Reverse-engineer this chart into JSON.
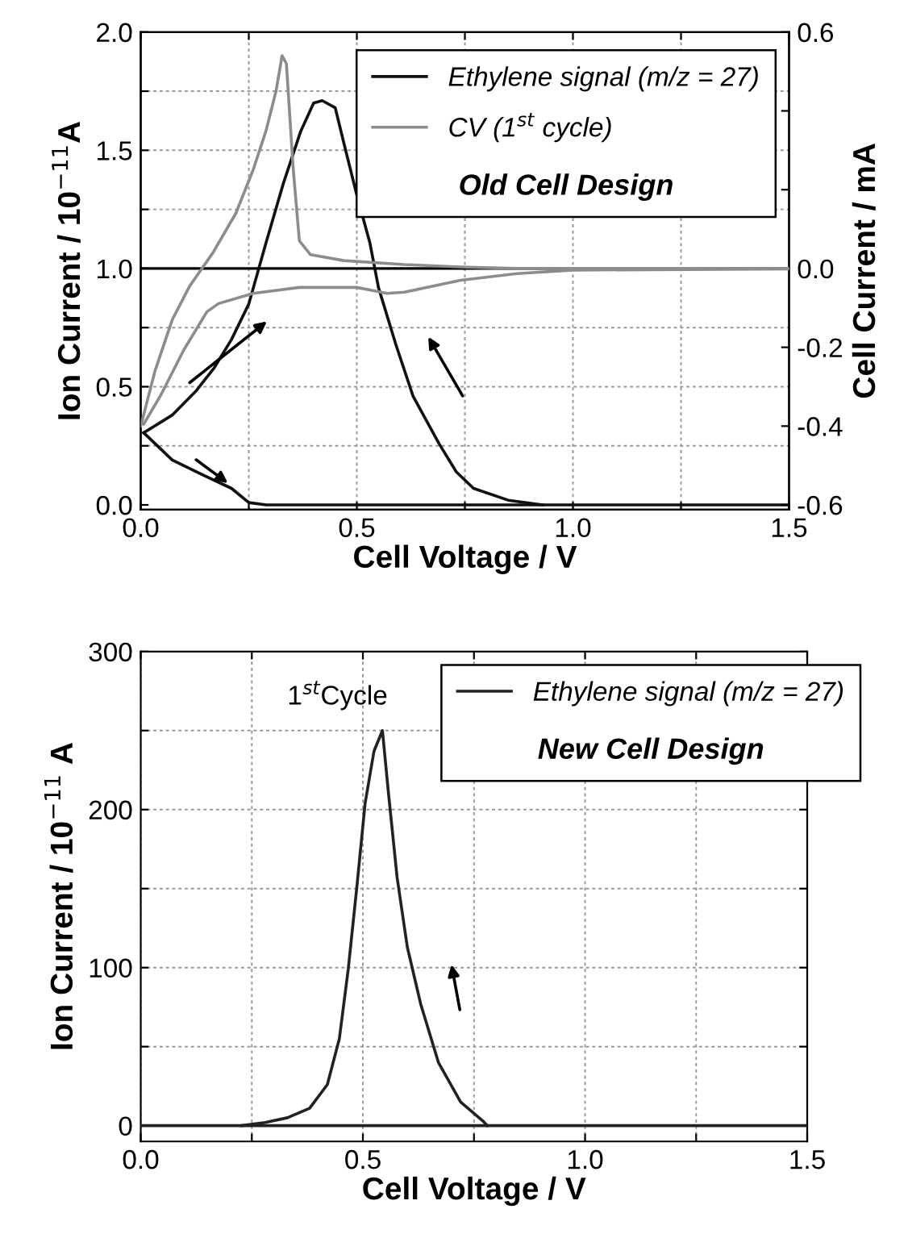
{
  "chart_data": [
    {
      "type": "line",
      "title": "Old Cell Design",
      "xlabel": "Cell Voltage / V",
      "ylabel": "Ion Current / 10$^{−11}$A",
      "y2label": "Cell Current / mA",
      "xlim": [
        0,
        1.5
      ],
      "xticks": [
        {
          "value": 0.0,
          "label": "0.0"
        },
        {
          "value": 0.25,
          "label": null
        },
        {
          "value": 0.5,
          "label": "0.5"
        },
        {
          "value": 0.75,
          "label": null
        },
        {
          "value": 1.0,
          "label": "1.0"
        },
        {
          "value": 1.25,
          "label": null
        },
        {
          "value": 1.5,
          "label": "1.5"
        }
      ],
      "ylim": [
        -0.02,
        2.0
      ],
      "yticks": [
        {
          "value": 0.0,
          "label": "0.0"
        },
        {
          "value": 0.25,
          "label": null
        },
        {
          "value": 0.5,
          "label": "0.5"
        },
        {
          "value": 0.75,
          "label": null
        },
        {
          "value": 1.0,
          "label": "1.0"
        },
        {
          "value": 1.25,
          "label": null
        },
        {
          "value": 1.5,
          "label": "1.5"
        },
        {
          "value": 1.75,
          "label": null
        },
        {
          "value": 2.0,
          "label": "2.0"
        }
      ],
      "y2lim": [
        -0.612,
        0.6
      ],
      "y2ticks": [
        0.6,
        {
          "value": 0.4,
          "label": null
        },
        {
          "value": 0.2,
          "label": null
        },
        {
          "value": 0.0,
          "label": "0.0"
        },
        -0.2,
        -0.4,
        -0.6
      ],
      "grid": true,
      "legend": "top right",
      "line_style": "solid",
      "marker": "none",
      "ref_lines": [
        {
          "axis": "y2",
          "value": 0,
          "color": "#000000"
        }
      ],
      "series": [
        {
          "name": "Ethylene signal (m/z = 27)",
          "color": "#111111",
          "x": [
            0.007,
            0.073,
            0.14,
            0.21,
            0.25,
            0.29,
            1.5
          ],
          "values": [
            0.305,
            0.19,
            0.13,
            0.07,
            0.01,
            0,
            0
          ]
        },
        {
          "color": "#111111",
          "x": [
            0.007,
            0.073,
            0.127,
            0.17,
            0.21,
            0.25,
            0.29,
            0.33,
            0.37,
            0.4,
            0.42,
            0.45,
            0.47,
            0.5,
            0.53,
            0.55,
            0.59,
            0.63,
            0.69,
            0.73,
            0.77,
            0.85,
            0.93
          ],
          "values": [
            0.305,
            0.38,
            0.48,
            0.58,
            0.7,
            0.85,
            1.11,
            1.36,
            1.58,
            1.7,
            1.71,
            1.68,
            1.53,
            1.31,
            1.11,
            0.92,
            0.68,
            0.46,
            0.26,
            0.14,
            0.07,
            0.02,
            0
          ]
        },
        {
          "name": "CV (1$^{st}$ cycle)",
          "color": "#8c8c8c",
          "axis": "y2",
          "x": [
            0.0,
            0.033,
            0.073,
            0.113,
            0.167,
            0.22,
            0.26,
            0.29,
            0.313,
            0.327,
            0.337,
            0.353,
            0.367,
            0.393,
            0.47,
            0.61,
            0.74,
            0.87,
            1.5
          ],
          "values": [
            -0.4,
            -0.26,
            -0.13,
            -0.045,
            0.04,
            0.14,
            0.25,
            0.35,
            0.45,
            0.54,
            0.52,
            0.25,
            0.07,
            0.035,
            0.02,
            0.01,
            0.004,
            0,
            0
          ]
        },
        {
          "color": "#8c8c8c",
          "axis": "y2",
          "x": [
            0.007,
            0.047,
            0.1,
            0.153,
            0.18,
            0.26,
            0.367,
            0.5,
            0.57,
            0.61,
            0.74,
            0.87,
            1.0,
            1.5
          ],
          "values": [
            -0.395,
            -0.32,
            -0.206,
            -0.11,
            -0.089,
            -0.063,
            -0.048,
            -0.048,
            -0.063,
            -0.06,
            -0.03,
            -0.013,
            -0.004,
            -0.001
          ]
        }
      ]
    },
    {
      "type": "line",
      "title": "New Cell Design",
      "xlabel": "Cell Voltage / V",
      "ylabel": "Ion Current / 10$^{−11}$ A",
      "xlim": [
        0,
        1.5
      ],
      "xticks": [
        {
          "value": 0.0,
          "label": "0.0"
        },
        {
          "value": 0.25,
          "label": null
        },
        {
          "value": 0.5,
          "label": "0.5"
        },
        {
          "value": 0.75,
          "label": null
        },
        {
          "value": 1.0,
          "label": "1.0"
        },
        {
          "value": 1.25,
          "label": null
        },
        {
          "value": 1.5,
          "label": "1.5"
        }
      ],
      "ylim": [
        -10,
        300
      ],
      "yticks": [
        0,
        {
          "value": 50,
          "label": null
        },
        100,
        {
          "value": 150,
          "label": null
        },
        200,
        {
          "value": 250,
          "label": null
        },
        300
      ],
      "grid": true,
      "legend": "top right",
      "line_style": "solid",
      "marker": "none",
      "annotations": [
        "1$^{st}$Cycle"
      ],
      "series": [
        {
          "name": "Ethylene signal (m/z = 27)",
          "color": "#222222",
          "x": [
            0.0,
            0.25,
            0.5,
            0.75,
            1.0,
            1.25,
            1.5
          ],
          "values": [
            0,
            0,
            0,
            0,
            0,
            0,
            0
          ]
        },
        {
          "color": "#222222",
          "x": [
            0.227,
            0.28,
            0.33,
            0.38,
            0.42,
            0.447,
            0.467,
            0.486,
            0.505,
            0.525,
            0.544,
            0.557,
            0.577,
            0.6,
            0.63,
            0.67,
            0.72,
            0.77,
            0.78
          ],
          "values": [
            0,
            2,
            5,
            11,
            26,
            55,
            99,
            150,
            204,
            237,
            250,
            212,
            157,
            113,
            77,
            40,
            15,
            3,
            0
          ]
        }
      ]
    }
  ]
}
